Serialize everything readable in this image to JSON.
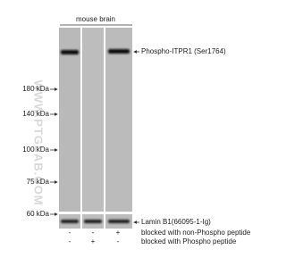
{
  "header": {
    "sample": "mouse brain"
  },
  "watermark": "WWW.PTGLAB.COM",
  "markers": [
    "180 kDa",
    "140 kDa",
    "100 kDa",
    "75 kDa",
    "60 kDa"
  ],
  "target": "Phospho-ITPR1 (Ser1764)",
  "control": "Lamin B1(66095-1-Ig)",
  "conditions": [
    {
      "label": "blocked with non-Phospho peptide",
      "lanes": [
        "-",
        "-",
        "+"
      ]
    },
    {
      "label": "blocked with Phospho peptide",
      "lanes": [
        "-",
        "+",
        "-"
      ]
    }
  ]
}
